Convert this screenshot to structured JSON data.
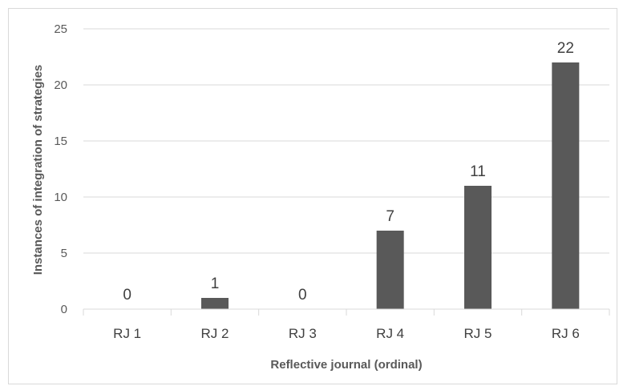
{
  "chart_data": {
    "type": "bar",
    "categories": [
      "RJ 1",
      "RJ 2",
      "RJ 3",
      "RJ 4",
      "RJ 5",
      "RJ 6"
    ],
    "values": [
      0,
      1,
      0,
      7,
      11,
      22
    ],
    "data_labels": [
      "0",
      "1",
      "0",
      "7",
      "11",
      "22"
    ],
    "title": "",
    "xlabel": "Reflective journal (ordinal)",
    "ylabel": "Instances of integration of strategies",
    "ylim": [
      0,
      25
    ],
    "yticks": [
      0,
      5,
      10,
      15,
      20,
      25
    ],
    "ytick_labels": [
      "0",
      "5",
      "10",
      "15",
      "20",
      "25"
    ],
    "grid": true,
    "legend": "none",
    "bar_color": "#595959",
    "grid_color": "#d9d9d9"
  }
}
